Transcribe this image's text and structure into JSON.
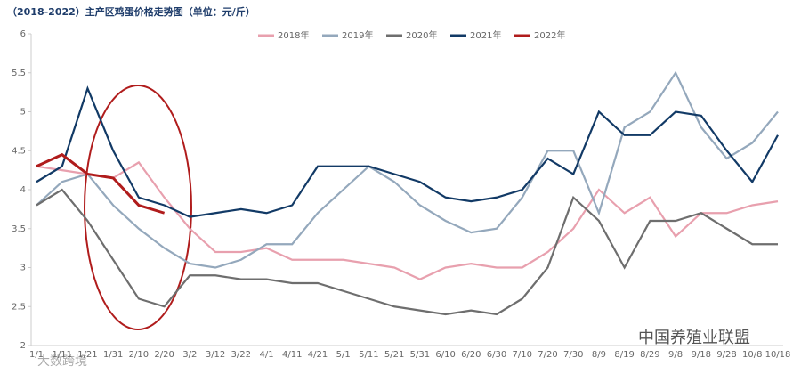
{
  "chart_data": {
    "type": "line",
    "title": "（2018-2022）主产区鸡蛋价格走势图（单位：元/斤）",
    "categories": [
      "1/1",
      "1/11",
      "1/21",
      "1/31",
      "2/10",
      "2/20",
      "3/2",
      "3/12",
      "3/22",
      "4/1",
      "4/11",
      "4/21",
      "5/1",
      "5/11",
      "5/21",
      "5/31",
      "6/10",
      "6/20",
      "6/30",
      "7/10",
      "7/20",
      "7/30",
      "8/9",
      "8/19",
      "8/29",
      "9/8",
      "9/18",
      "9/28",
      "10/8",
      "10/18"
    ],
    "series": [
      {
        "name": "2018年",
        "color": "#e8a0ae",
        "values": [
          4.3,
          4.25,
          4.2,
          4.15,
          4.35,
          3.9,
          3.5,
          3.2,
          3.2,
          3.25,
          3.1,
          3.1,
          3.1,
          3.05,
          3.0,
          2.85,
          3.0,
          3.05,
          3.0,
          3.0,
          3.2,
          3.5,
          4.0,
          3.7,
          3.9,
          3.4,
          3.7,
          3.7,
          3.8,
          3.85
        ]
      },
      {
        "name": "2019年",
        "color": "#94a8bc",
        "values": [
          3.8,
          4.1,
          4.2,
          3.8,
          3.5,
          3.25,
          3.05,
          3.0,
          3.1,
          3.3,
          3.3,
          3.7,
          4.0,
          4.3,
          4.1,
          3.8,
          3.6,
          3.45,
          3.5,
          3.9,
          4.5,
          4.5,
          3.7,
          4.8,
          5.0,
          5.5,
          4.8,
          4.4,
          4.6,
          5.0
        ]
      },
      {
        "name": "2020年",
        "color": "#6e6e6e",
        "values": [
          3.8,
          4.0,
          3.6,
          3.1,
          2.6,
          2.5,
          2.9,
          2.9,
          2.85,
          2.85,
          2.8,
          2.8,
          2.7,
          2.6,
          2.5,
          2.45,
          2.4,
          2.45,
          2.4,
          2.6,
          3.0,
          3.9,
          3.6,
          3.0,
          3.6,
          3.6,
          3.7,
          3.5,
          3.3,
          3.3
        ]
      },
      {
        "name": "2021年",
        "color": "#123a66",
        "values": [
          4.1,
          4.3,
          5.3,
          4.5,
          3.9,
          3.8,
          3.65,
          3.7,
          3.75,
          3.7,
          3.8,
          4.3,
          4.3,
          4.3,
          4.2,
          4.1,
          3.9,
          3.85,
          3.9,
          4.0,
          4.4,
          4.2,
          5.0,
          4.7,
          4.7,
          5.0,
          4.95,
          4.5,
          4.1,
          4.7
        ]
      },
      {
        "name": "2022年",
        "color": "#b01c1c",
        "values": [
          4.3,
          4.45,
          4.2,
          4.15,
          3.8,
          3.7,
          null,
          null,
          null,
          null,
          null,
          null,
          null,
          null,
          null,
          null,
          null,
          null,
          null,
          null,
          null,
          null,
          null,
          null,
          null,
          null,
          null,
          null,
          null,
          null
        ]
      }
    ],
    "ylim": [
      2,
      6
    ],
    "yticks": [
      2,
      2.5,
      3,
      3.5,
      4,
      4.5,
      5,
      5.5,
      6
    ],
    "watermark": "中国养殖业联盟",
    "corner_text": "大数跨境"
  }
}
